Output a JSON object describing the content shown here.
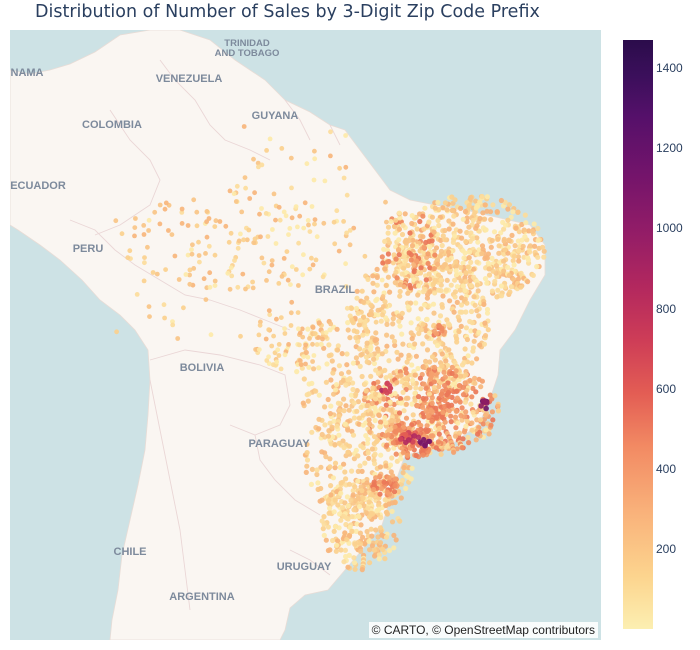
{
  "title": "Distribution of Number of Sales by 3-Digit Zip Code Prefix",
  "attribution": "© CARTO, © OpenStreetMap contributors",
  "map": {
    "country_labels": {
      "trinidad_line1": "TRINIDAD",
      "trinidad_line2": "AND TOBAGO",
      "panama": "NAMA",
      "venezuela": "VENEZUELA",
      "guyana": "GUYANA",
      "colombia": "COLOMBIA",
      "ecuador": "ECUADOR",
      "peru": "PERU",
      "brazil": "BRAZIL",
      "bolivia": "BOLIVIA",
      "paraguay": "PARAGUAY",
      "chile": "CHILE",
      "uruguay": "URUGUAY",
      "argentina": "ARGENTINA"
    },
    "colors": {
      "ocean": "#cde2e5",
      "land": "#faf6f2",
      "label": "#7d8a9c"
    }
  },
  "colorbar": {
    "min": 1,
    "max": 1470,
    "ticks": [
      {
        "value": 200,
        "label": "200"
      },
      {
        "value": 400,
        "label": "400"
      },
      {
        "value": 600,
        "label": "600"
      },
      {
        "value": 800,
        "label": "800"
      },
      {
        "value": 1000,
        "label": "1000"
      },
      {
        "value": 1200,
        "label": "1200"
      },
      {
        "value": 1400,
        "label": "1400"
      }
    ]
  }
}
